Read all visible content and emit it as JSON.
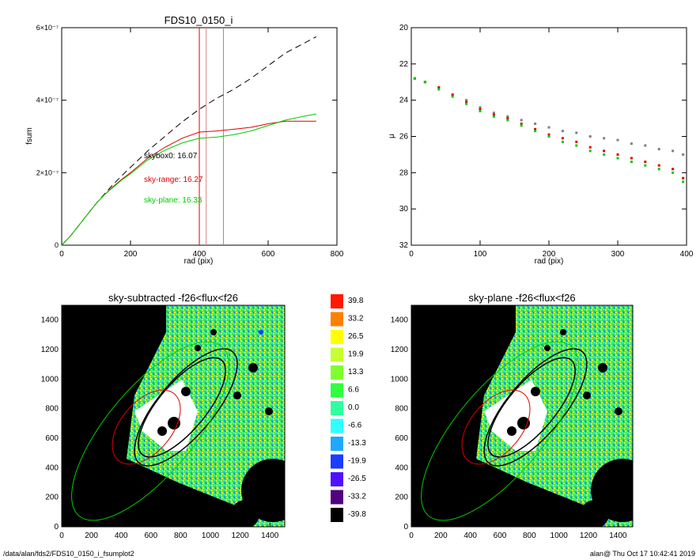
{
  "footer": {
    "path": "/data/alan/fds2/FDS10_0150_i_fsumplot2",
    "stamp": "alan@  Thu Oct 17 10:42:41 2019"
  },
  "chart_data": [
    {
      "type": "line",
      "title": "FDS10_0150_i",
      "xlabel": "rad (pix)",
      "ylabel": "fsum",
      "xlim": [
        0,
        800
      ],
      "ylim": [
        0,
        6e-07
      ],
      "xticks": [
        "0",
        "200",
        "400",
        "600",
        "800"
      ],
      "yticks": [
        "0",
        "2×10⁻⁷",
        "4×10⁻⁷",
        "6×10⁻⁷"
      ],
      "vlines": [
        {
          "x": 400,
          "color": "#e00000"
        },
        {
          "x": 420,
          "color": "#e08080"
        },
        {
          "x": 470,
          "color": "#909090"
        }
      ],
      "series": [
        {
          "color": "#000000",
          "dash": "dashed",
          "x": [
            0,
            25,
            50,
            75,
            100,
            125,
            150,
            175,
            200,
            250,
            300,
            350,
            400,
            450,
            500,
            550,
            600,
            650,
            700,
            740
          ],
          "y": [
            0,
            2.5e-08,
            5.5e-08,
            8.5e-08,
            1.15e-07,
            1.42e-07,
            1.68e-07,
            1.92e-07,
            2.15e-07,
            2.6e-07,
            3e-07,
            3.4e-07,
            3.75e-07,
            4.05e-07,
            4.3e-07,
            4.6e-07,
            4.95e-07,
            5.3e-07,
            5.55e-07,
            5.75e-07
          ]
        },
        {
          "color": "#e00000",
          "dash": "solid",
          "x": [
            0,
            25,
            50,
            75,
            100,
            125,
            150,
            175,
            200,
            250,
            300,
            350,
            400,
            450,
            500,
            550,
            600,
            650,
            700,
            740
          ],
          "y": [
            0,
            2.5e-08,
            5.5e-08,
            8.5e-08,
            1.15e-07,
            1.4e-07,
            1.62e-07,
            1.82e-07,
            2e-07,
            2.4e-07,
            2.7e-07,
            2.95e-07,
            3.12e-07,
            3.15e-07,
            3.2e-07,
            3.25e-07,
            3.35e-07,
            3.42e-07,
            3.42e-07,
            3.42e-07
          ]
        },
        {
          "color": "#00cc00",
          "dash": "solid",
          "x": [
            0,
            25,
            50,
            75,
            100,
            125,
            150,
            175,
            200,
            250,
            300,
            350,
            400,
            450,
            500,
            550,
            600,
            650,
            700,
            740
          ],
          "y": [
            0,
            2.5e-08,
            5.5e-08,
            8.5e-08,
            1.15e-07,
            1.4e-07,
            1.6e-07,
            1.8e-07,
            1.97e-07,
            2.35e-07,
            2.62e-07,
            2.82e-07,
            2.95e-07,
            2.98e-07,
            3.05e-07,
            3.15e-07,
            3.3e-07,
            3.45e-07,
            3.55e-07,
            3.62e-07
          ]
        }
      ],
      "annotations": [
        {
          "text": "skybox0: 16.07",
          "color": "#000000"
        },
        {
          "text": "sky-range: 16.27",
          "color": "#e00000"
        },
        {
          "text": "sky-plane: 16.33",
          "color": "#00cc00"
        }
      ]
    },
    {
      "type": "scatter",
      "title": "",
      "xlabel": "rad (pix)",
      "ylabel": "μ",
      "xlim": [
        0,
        400
      ],
      "ylim": [
        32,
        20
      ],
      "xticks": [
        "0",
        "100",
        "200",
        "300",
        "400"
      ],
      "yticks": [
        "20",
        "22",
        "24",
        "26",
        "28",
        "30",
        "32"
      ],
      "series": [
        {
          "color": "#808080",
          "x": [
            5,
            20,
            40,
            60,
            80,
            100,
            120,
            140,
            160,
            180,
            200,
            220,
            240,
            260,
            280,
            300,
            320,
            340,
            360,
            380,
            395
          ],
          "y": [
            22.8,
            23.0,
            23.3,
            23.7,
            24.0,
            24.4,
            24.7,
            24.9,
            25.1,
            25.3,
            25.5,
            25.7,
            25.8,
            26.0,
            26.1,
            26.2,
            26.4,
            26.5,
            26.7,
            26.8,
            27.0
          ]
        },
        {
          "color": "#e00000",
          "x": [
            5,
            20,
            40,
            60,
            80,
            100,
            120,
            140,
            160,
            180,
            200,
            220,
            240,
            260,
            280,
            300,
            320,
            340,
            360,
            380,
            395
          ],
          "y": [
            22.8,
            23.0,
            23.3,
            23.7,
            24.1,
            24.5,
            24.8,
            25.0,
            25.3,
            25.6,
            25.9,
            26.1,
            26.3,
            26.6,
            26.8,
            27.0,
            27.2,
            27.4,
            27.6,
            27.8,
            28.3
          ]
        },
        {
          "color": "#00cc00",
          "x": [
            5,
            20,
            40,
            60,
            80,
            100,
            120,
            140,
            160,
            180,
            200,
            220,
            240,
            260,
            280,
            300,
            320,
            340,
            360,
            380,
            395
          ],
          "y": [
            22.8,
            23.0,
            23.4,
            23.8,
            24.2,
            24.6,
            24.9,
            25.1,
            25.4,
            25.7,
            26.0,
            26.3,
            26.5,
            26.8,
            27.0,
            27.2,
            27.4,
            27.6,
            27.8,
            28.0,
            28.5
          ]
        }
      ]
    },
    {
      "type": "heatmap",
      "title": "sky-subtracted -f26<flux<f26",
      "xlim": [
        0,
        1500
      ],
      "ylim": [
        0,
        1500
      ],
      "xticks": [
        "0",
        "200",
        "400",
        "600",
        "800",
        "1000",
        "1200",
        "1400"
      ],
      "yticks": [
        "0",
        "200",
        "400",
        "600",
        "800",
        "1000",
        "1200",
        "1400"
      ]
    },
    {
      "type": "heatmap",
      "title": "sky-plane -f26<flux<f26",
      "xlim": [
        0,
        1500
      ],
      "ylim": [
        0,
        1500
      ],
      "xticks": [
        "0",
        "200",
        "400",
        "600",
        "800",
        "1000",
        "1200",
        "1400"
      ],
      "yticks": [
        "0",
        "200",
        "400",
        "600",
        "800",
        "1000",
        "1200",
        "1400"
      ]
    }
  ],
  "colorbar": [
    {
      "label": "39.8",
      "color": "#ff1a00"
    },
    {
      "label": "33.2",
      "color": "#ff8000"
    },
    {
      "label": "26.5",
      "color": "#ffff00"
    },
    {
      "label": "19.9",
      "color": "#c8ff30"
    },
    {
      "label": "13.3",
      "color": "#80ff30"
    },
    {
      "label": "6.6",
      "color": "#30ff40"
    },
    {
      "label": "0.0",
      "color": "#30ffa0"
    },
    {
      "label": "-6.6",
      "color": "#30ffff"
    },
    {
      "label": "-13.3",
      "color": "#20a8ff"
    },
    {
      "label": "-19.9",
      "color": "#1a3cff"
    },
    {
      "label": "-26.5",
      "color": "#5010ff"
    },
    {
      "label": "-33.2",
      "color": "#500080"
    },
    {
      "label": "-39.8",
      "color": "#000000"
    }
  ]
}
